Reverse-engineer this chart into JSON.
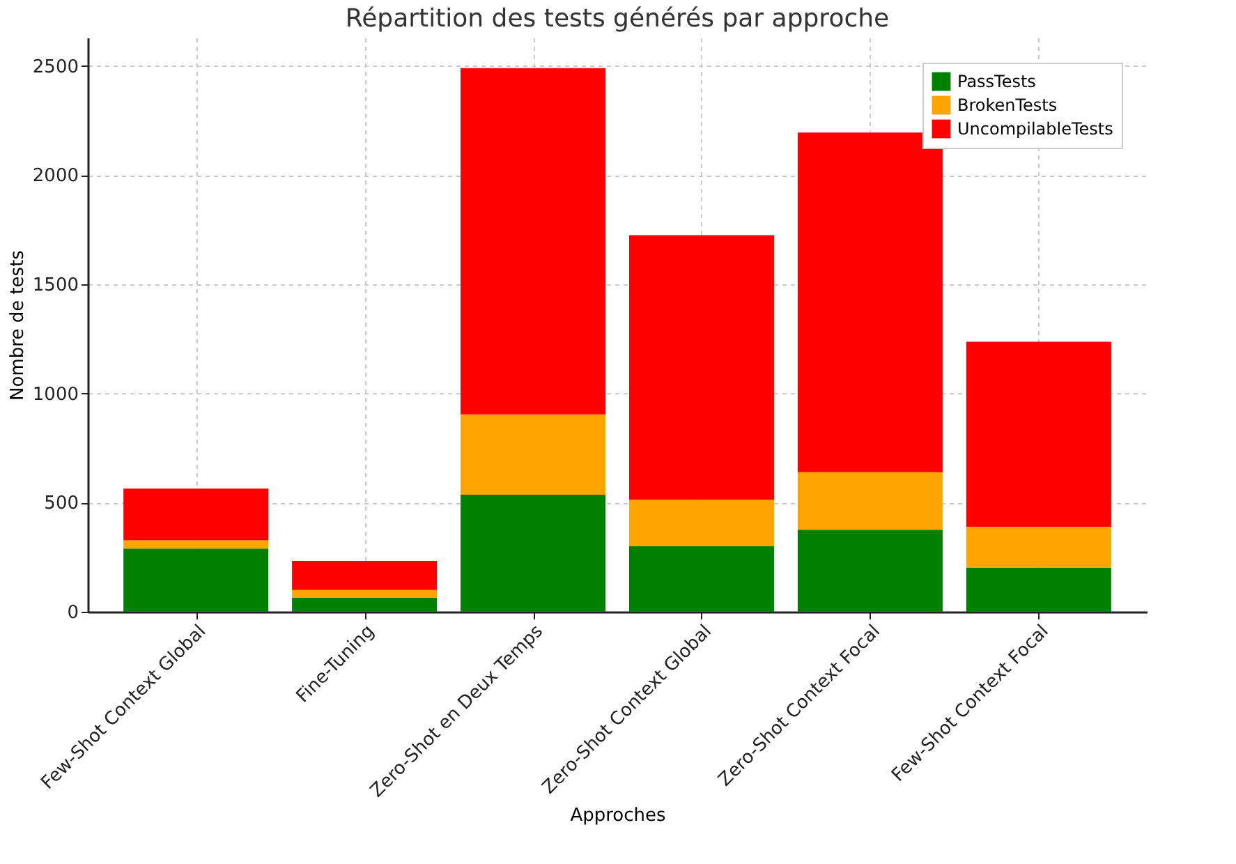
{
  "chart_data": {
    "type": "bar",
    "title": "Répartition des tests générés par approche",
    "xlabel": "Approches",
    "ylabel": "Nombre de tests",
    "categories": [
      "Few-Shot Context Global",
      "Fine-Tuning",
      "Zero-Shot en Deux Temps",
      "Zero-Shot Context Global",
      "Zero-Shot Context Focal",
      "Few-Shot Context Focal"
    ],
    "series": [
      {
        "name": "PassTests",
        "color": "#008000",
        "values": [
          290,
          64,
          536,
          300,
          376,
          203
        ]
      },
      {
        "name": "BrokenTests",
        "color": "#ffa500",
        "values": [
          37,
          36,
          368,
          213,
          263,
          186
        ]
      },
      {
        "name": "UncompilableTests",
        "color": "#ff0000",
        "values": [
          237,
          133,
          1586,
          1212,
          1556,
          848
        ]
      }
    ],
    "stacked": true,
    "ylim": [
      0,
      2630
    ],
    "yticks": [
      0,
      500,
      1000,
      1500,
      2000,
      2500
    ],
    "grid": true,
    "legend": "top right"
  }
}
